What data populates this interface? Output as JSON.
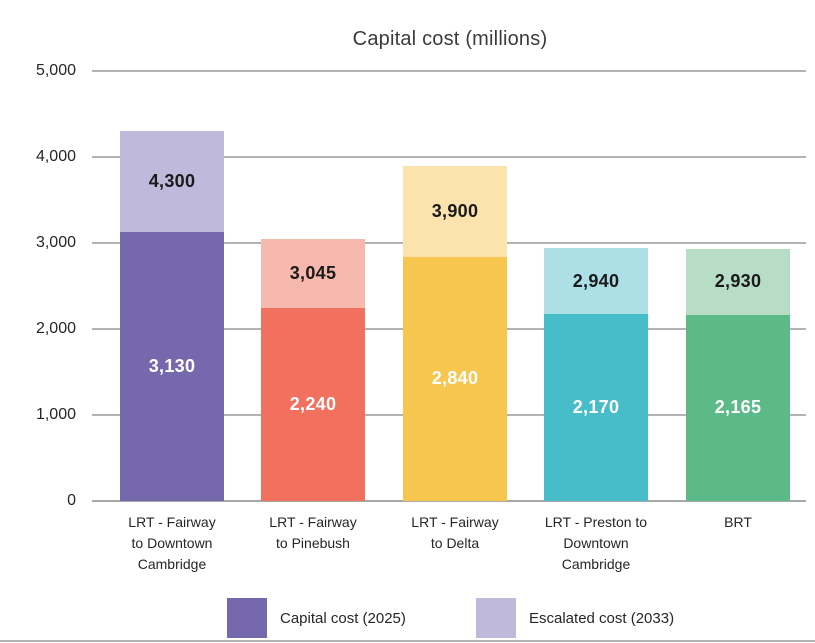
{
  "chart_data": {
    "type": "bar",
    "stacked": true,
    "title": "Capital cost (millions)",
    "categories": [
      "LRT - Fairway to Downtown Cambridge",
      "LRT - Fairway to Pinebush",
      "LRT - Fairway to Delta",
      "LRT - Preston to Downtown Cambridge",
      "BRT"
    ],
    "category_lines": [
      [
        "LRT - Fairway",
        "to Downtown",
        "Cambridge"
      ],
      [
        "LRT - Fairway",
        "to Pinebush"
      ],
      [
        "LRT - Fairway",
        "to Delta"
      ],
      [
        "LRT - Preston to",
        "Downtown",
        "Cambridge"
      ],
      [
        "BRT"
      ]
    ],
    "series": [
      {
        "name": "Capital cost (2025)",
        "values": [
          3130,
          2240,
          2840,
          2170,
          2165
        ]
      },
      {
        "name": "Escalated cost (2033)",
        "values": [
          4300,
          3045,
          3900,
          2940,
          2930
        ]
      }
    ],
    "bar_labels": {
      "capital": [
        "3,130",
        "2,240",
        "2,840",
        "2,170",
        "2,165"
      ],
      "escalated": [
        "4,300",
        "3,045",
        "3,900",
        "2,940",
        "2,930"
      ]
    },
    "bar_colors": [
      {
        "capital": "#7668ad",
        "escalated": "#bfb9dc"
      },
      {
        "capital": "#f2705e",
        "escalated": "#f7b9ad"
      },
      {
        "capital": "#f7c64f",
        "escalated": "#fce3ae"
      },
      {
        "capital": "#46bdc8",
        "escalated": "#ace0e6"
      },
      {
        "capital": "#5cba88",
        "escalated": "#b7ddc6"
      }
    ],
    "ylim": [
      0,
      5000
    ],
    "yticks": [
      "5,000",
      "4,000",
      "3,000",
      "2,000",
      "1,000",
      "0"
    ],
    "grid": true,
    "legend_position": "bottom",
    "legend": [
      {
        "label": "Capital cost (2025)",
        "color": "#7668ad"
      },
      {
        "label": "Escalated cost (2033)",
        "color": "#bfb9dc"
      }
    ]
  }
}
